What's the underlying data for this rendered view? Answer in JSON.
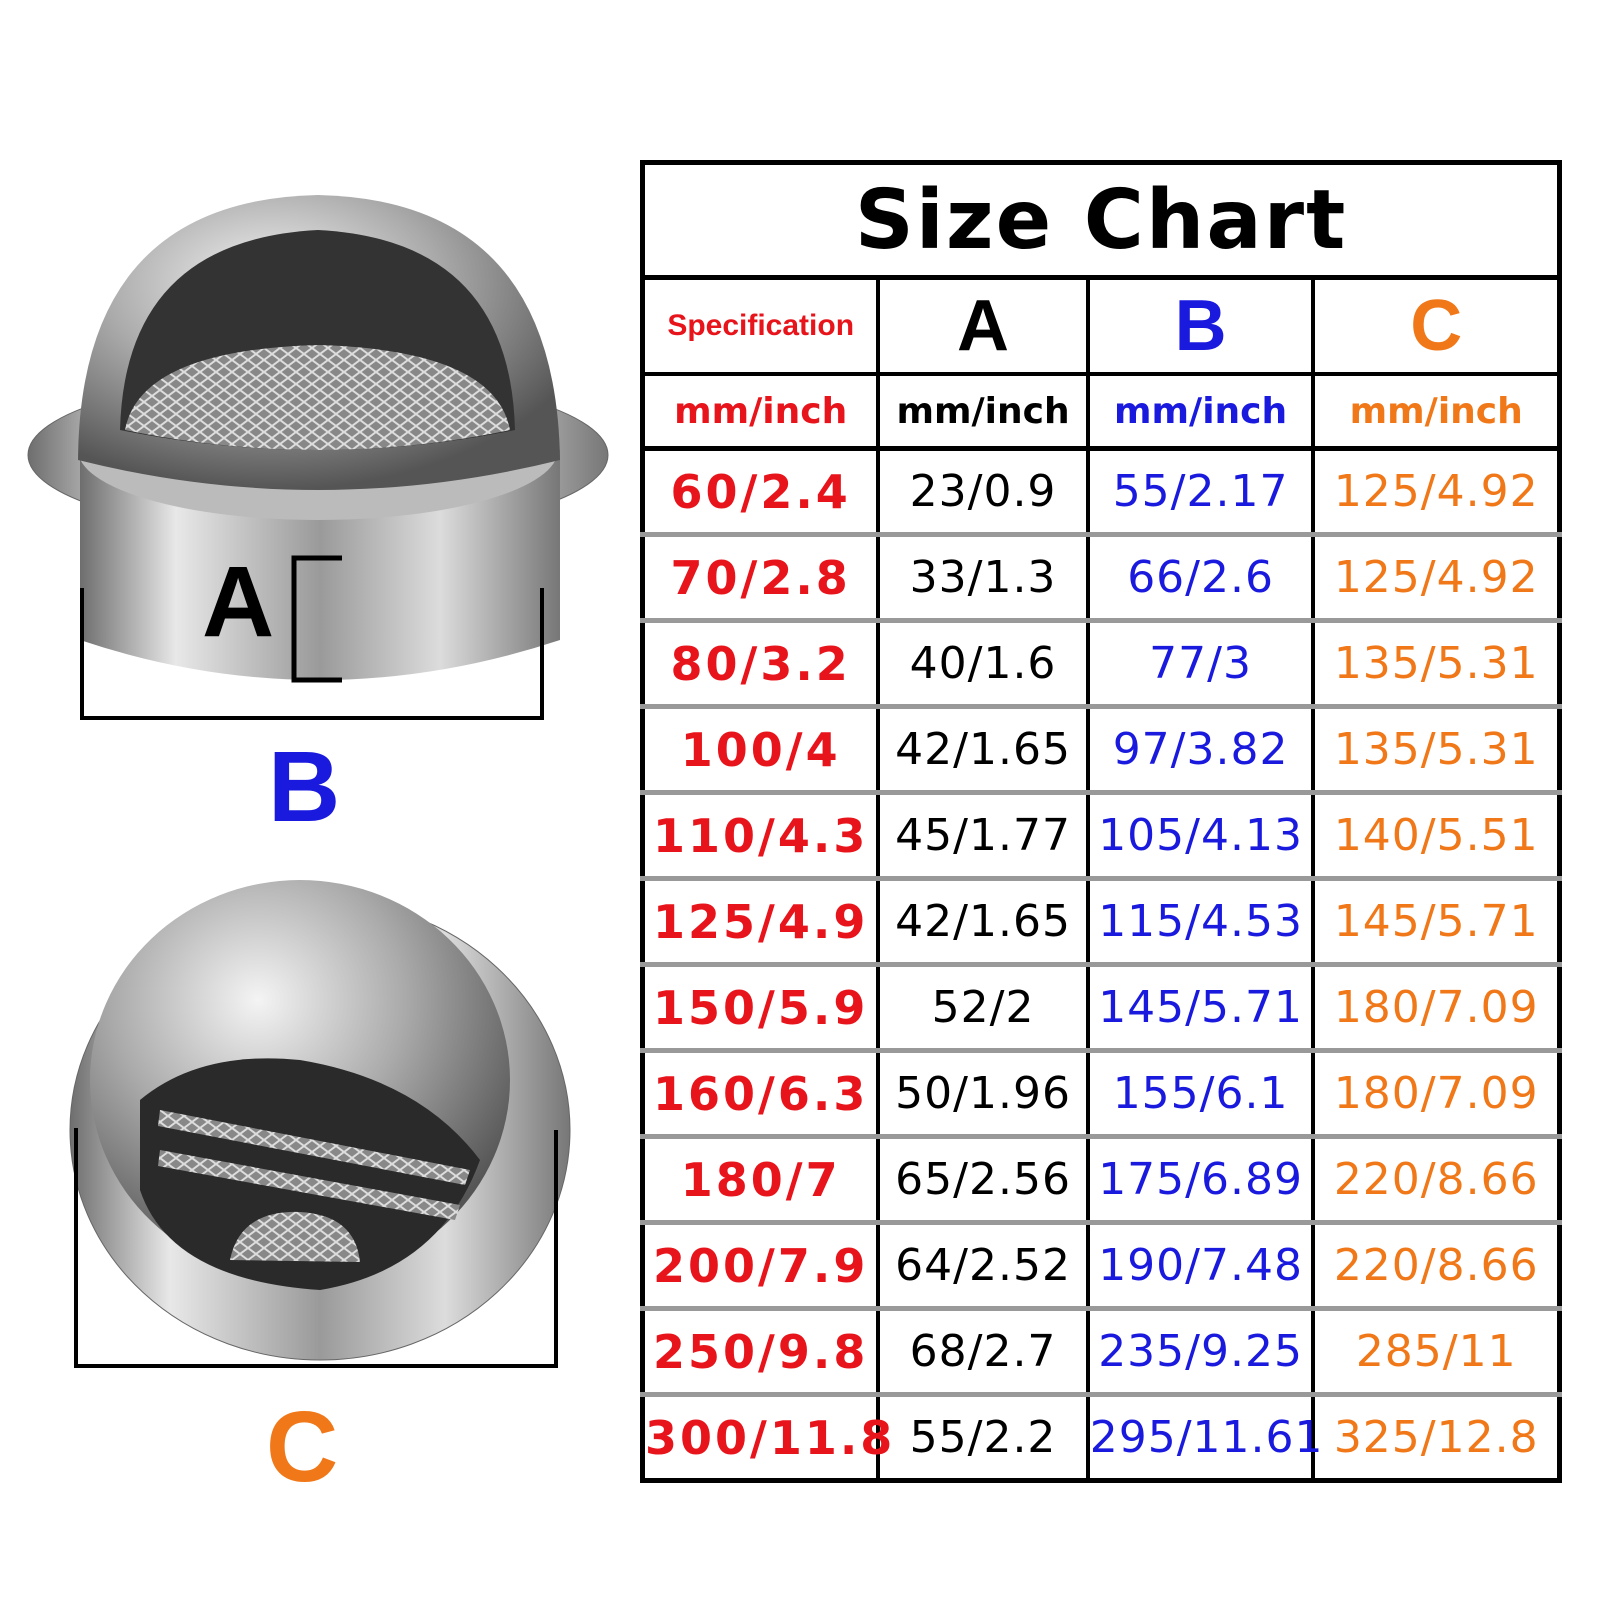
{
  "labels": {
    "a": "A",
    "b": "B",
    "c": "C"
  },
  "table": {
    "title": "Size Chart",
    "header": [
      "Specification",
      "A",
      "B",
      "C"
    ],
    "units": [
      "mm/inch",
      "mm/inch",
      "mm/inch",
      "mm/inch"
    ],
    "rows": [
      [
        "60/2.4",
        "23/0.9",
        "55/2.17",
        "125/4.92"
      ],
      [
        "70/2.8",
        "33/1.3",
        "66/2.6",
        "125/4.92"
      ],
      [
        "80/3.2",
        "40/1.6",
        "77/3",
        "135/5.31"
      ],
      [
        "100/4",
        "42/1.65",
        "97/3.82",
        "135/5.31"
      ],
      [
        "110/4.3",
        "45/1.77",
        "105/4.13",
        "140/5.51"
      ],
      [
        "125/4.9",
        "42/1.65",
        "115/4.53",
        "145/5.71"
      ],
      [
        "150/5.9",
        "52/2",
        "145/5.71",
        "180/7.09"
      ],
      [
        "160/6.3",
        "50/1.96",
        "155/6.1",
        "180/7.09"
      ],
      [
        "180/7",
        "65/2.56",
        "175/6.89",
        "220/8.66"
      ],
      [
        "200/7.9",
        "64/2.52",
        "190/7.48",
        "220/8.66"
      ],
      [
        "250/9.8",
        "68/2.7",
        "235/9.25",
        "285/11"
      ],
      [
        "300/11.8",
        "55/2.2",
        "295/11.61",
        "325/12.8"
      ]
    ]
  }
}
